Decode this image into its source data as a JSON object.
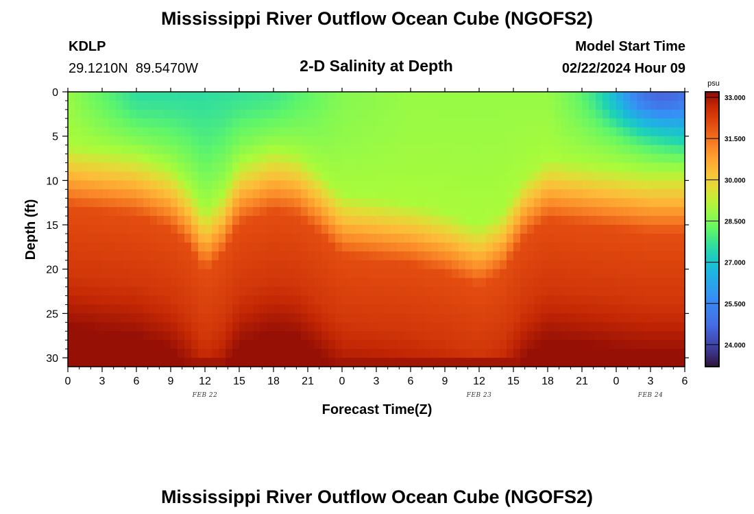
{
  "header": {
    "title_top": "Mississippi River Outflow Ocean Cube (NGOFS2)",
    "title_bottom": "Mississippi River Outflow Ocean Cube (NGOFS2)",
    "station": "KDLP",
    "coords": "29.1210N  89.5470W",
    "subtitle": "2-D Salinity at Depth",
    "model_start_label": "Model Start Time",
    "model_start_value": "02/22/2024 Hour 09"
  },
  "chart_data": {
    "type": "heatmap",
    "title": "2-D Salinity at Depth",
    "xlabel": "Forecast Time(Z)",
    "ylabel": "Depth (ft)",
    "x_hours_range": [
      0,
      54
    ],
    "x_tick_hours": [
      0,
      3,
      6,
      9,
      12,
      15,
      18,
      21,
      24,
      27,
      30,
      33,
      36,
      39,
      42,
      45,
      48,
      51,
      54
    ],
    "x_tick_labels": [
      "0",
      "3",
      "6",
      "9",
      "12",
      "15",
      "18",
      "21",
      "0",
      "3",
      "6",
      "9",
      "12",
      "15",
      "18",
      "21",
      "0",
      "3",
      "6"
    ],
    "date_labels": [
      {
        "hour": 12,
        "text": "FEB 22"
      },
      {
        "hour": 36,
        "text": "FEB 23"
      },
      {
        "hour": 51,
        "text": "FEB 24"
      }
    ],
    "ylim": [
      0,
      31
    ],
    "y_ticks": [
      0,
      5,
      10,
      15,
      20,
      25,
      30
    ],
    "colorbar": {
      "unit": "psu",
      "range": [
        23.2,
        33.2
      ],
      "ticks": [
        24.0,
        25.5,
        27.0,
        28.5,
        30.0,
        31.5,
        33.0
      ],
      "tick_labels": [
        "24.000",
        "25.500",
        "27.000",
        "28.500",
        "30.000",
        "31.500",
        "33.000"
      ]
    },
    "halocline_depth_ft": {
      "hours": [
        0,
        3,
        6,
        9,
        10.5,
        12,
        13.5,
        15,
        18,
        20,
        22,
        24,
        27,
        30,
        33,
        36,
        38,
        40,
        42,
        45,
        48,
        51,
        54
      ],
      "values": [
        9.5,
        10,
        10.5,
        12,
        14,
        17,
        15,
        11.5,
        10,
        10.5,
        12.5,
        15,
        15.5,
        16,
        17,
        18.5,
        17,
        13,
        11,
        11.5,
        12,
        12.5,
        12.5
      ]
    },
    "surface_salinity_psu": {
      "hours": [
        0,
        6,
        12,
        18,
        24,
        30,
        36,
        42,
        48,
        54
      ],
      "values": [
        28.8,
        27.6,
        27.6,
        27.8,
        28.6,
        28.8,
        28.8,
        28.8,
        27.8,
        26.0
      ]
    },
    "corner_minimum": {
      "hour": 52,
      "depth_ft": 0.5,
      "salinity_psu": 24.6
    },
    "bottom_salinity_psu": 33.1,
    "deep_salinity_psu": 32.4
  }
}
